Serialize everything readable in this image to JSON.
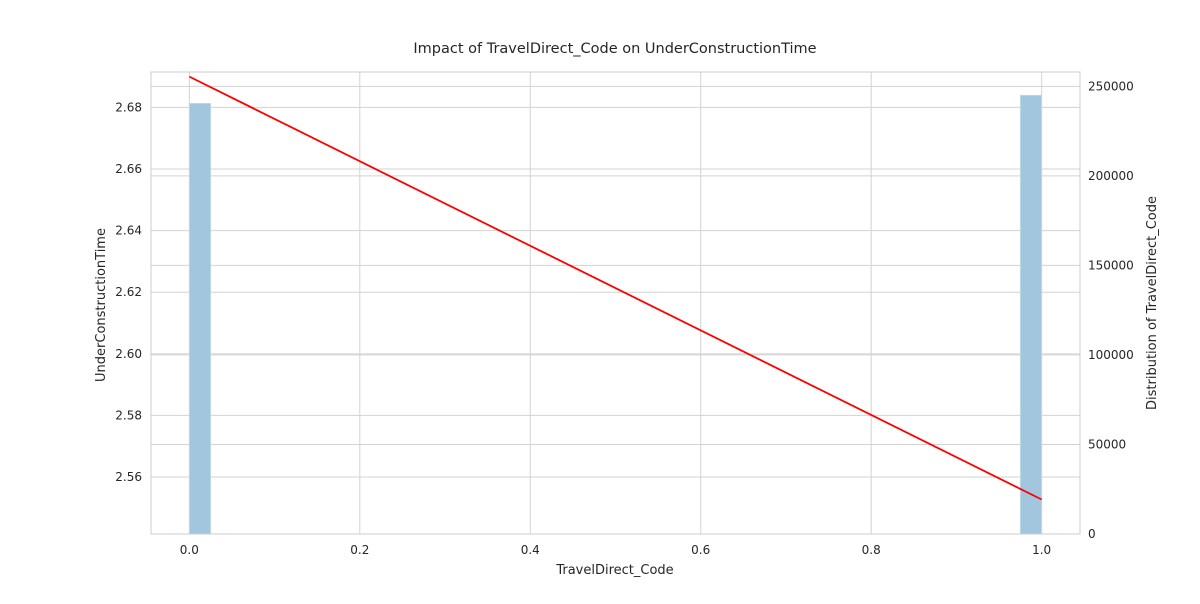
{
  "chart_data": {
    "type": "line",
    "title": "Impact of TravelDirect_Code on UnderConstructionTime",
    "xlabel": "TravelDirect_Code",
    "ylabel": "UnderConstructionTime",
    "y2label": "Distribution of TravelDirect_Code",
    "xlim": [
      -0.045,
      1.045
    ],
    "ylim": [
      2.5415,
      2.6915
    ],
    "y2lim": [
      0,
      258000
    ],
    "x_ticks": [
      0.0,
      0.2,
      0.4,
      0.6,
      0.8,
      1.0
    ],
    "x_tick_labels": [
      "0.0",
      "0.2",
      "0.4",
      "0.6",
      "0.8",
      "1.0"
    ],
    "y_ticks": [
      2.56,
      2.58,
      2.6,
      2.62,
      2.64,
      2.66,
      2.68
    ],
    "y_tick_labels": [
      "2.56",
      "2.58",
      "2.60",
      "2.62",
      "2.64",
      "2.66",
      "2.68"
    ],
    "y2_ticks": [
      0,
      50000,
      100000,
      150000,
      200000,
      250000
    ],
    "y2_tick_labels": [
      "0",
      "50000",
      "100000",
      "150000",
      "200000",
      "250000"
    ],
    "grid": true,
    "series": [
      {
        "kind": "line",
        "color": "#ff0000",
        "x": [
          0.0,
          1.0
        ],
        "y": [
          2.69,
          2.5527
        ]
      },
      {
        "kind": "histogram",
        "axis": "y2",
        "color": "#a3c6df",
        "bins": [
          {
            "x0": 0.0,
            "x1": 0.025,
            "count": 240500
          },
          {
            "x0": 0.975,
            "x1": 1.0,
            "count": 245000
          }
        ]
      }
    ]
  }
}
